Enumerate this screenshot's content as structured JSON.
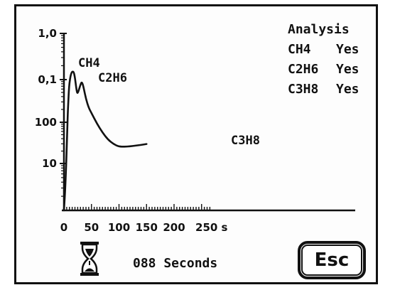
{
  "analysis": {
    "title": "Analysis",
    "rows": [
      {
        "gas": "CH4",
        "result": "Yes"
      },
      {
        "gas": "C2H6",
        "result": "Yes"
      },
      {
        "gas": "C3H8",
        "result": "Yes"
      }
    ]
  },
  "status": {
    "elapsed_text": "088 Seconds",
    "hourglass_icon": "hourglass-icon"
  },
  "buttons": {
    "esc_label": "Esc"
  },
  "chart_data": {
    "type": "line",
    "x_ticks": [
      "0",
      "50",
      "100",
      "150",
      "200",
      "250 s"
    ],
    "y_ticks": [
      "1,0",
      "0,1",
      "100",
      "10"
    ],
    "x_range": [
      0,
      260
    ],
    "peak_labels": [
      "CH4",
      "C2H6",
      "C3H8"
    ],
    "series": [
      {
        "points": [
          [
            0,
            0.0
          ],
          [
            2,
            0.1
          ],
          [
            4,
            0.25
          ],
          [
            6,
            0.45
          ],
          [
            7,
            0.55
          ],
          [
            8,
            0.62
          ],
          [
            9,
            0.68
          ],
          [
            10,
            0.72
          ],
          [
            12,
            0.76
          ],
          [
            14,
            0.78
          ],
          [
            16,
            0.785
          ],
          [
            18,
            0.78
          ],
          [
            20,
            0.75
          ],
          [
            22,
            0.7
          ],
          [
            24,
            0.66
          ],
          [
            26,
            0.67
          ],
          [
            28,
            0.69
          ],
          [
            30,
            0.71
          ],
          [
            32,
            0.725
          ],
          [
            34,
            0.715
          ],
          [
            36,
            0.69
          ],
          [
            40,
            0.63
          ],
          [
            45,
            0.58
          ],
          [
            50,
            0.55
          ],
          [
            60,
            0.49
          ],
          [
            70,
            0.44
          ],
          [
            80,
            0.4
          ],
          [
            90,
            0.375
          ],
          [
            100,
            0.36
          ],
          [
            110,
            0.36
          ],
          [
            120,
            0.362
          ],
          [
            130,
            0.366
          ],
          [
            140,
            0.37
          ],
          [
            150,
            0.375
          ]
        ]
      }
    ]
  }
}
